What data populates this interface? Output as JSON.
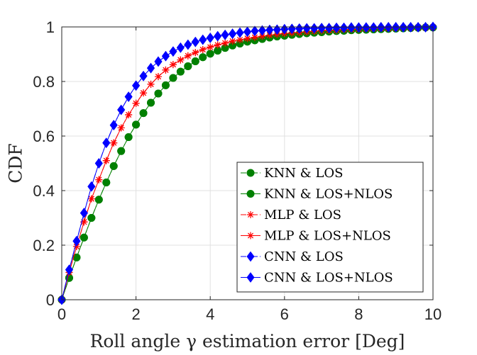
{
  "chart_data": {
    "type": "line",
    "xlabel": "Roll angle γ estimation error [Deg]",
    "ylabel": "CDF",
    "xlim": [
      0,
      10
    ],
    "ylim": [
      0,
      1
    ],
    "xticks": [
      0,
      2,
      4,
      6,
      8,
      10
    ],
    "yticks": [
      0,
      0.2,
      0.4,
      0.6,
      0.8,
      1
    ],
    "xtick_labels": [
      "0",
      "2",
      "4",
      "6",
      "8",
      "10"
    ],
    "ytick_labels": [
      "0",
      "0.2",
      "0.4",
      "0.6",
      "0.8",
      "1"
    ],
    "grid": true,
    "legend_position": "bottom-right",
    "x": [
      0,
      0.2,
      0.4,
      0.6,
      0.8,
      1.0,
      1.2,
      1.4,
      1.6,
      1.8,
      2.0,
      2.2,
      2.4,
      2.6,
      2.8,
      3.0,
      3.2,
      3.4,
      3.6,
      3.8,
      4.0,
      4.2,
      4.4,
      4.6,
      4.8,
      5.0,
      5.2,
      5.4,
      5.6,
      5.8,
      6.0,
      6.2,
      6.4,
      6.6,
      6.8,
      7.0,
      7.2,
      7.4,
      7.6,
      7.8,
      8.0,
      8.2,
      8.4,
      8.6,
      8.8,
      9.0,
      9.2,
      9.4,
      9.6,
      9.8,
      10.0
    ],
    "series": [
      {
        "name": "KNN & LOS",
        "color": "#008000",
        "marker": "circle",
        "dash": "dash-dot",
        "values": [
          0,
          0.08,
          0.155,
          0.228,
          0.3,
          0.367,
          0.43,
          0.49,
          0.545,
          0.596,
          0.642,
          0.684,
          0.722,
          0.756,
          0.786,
          0.813,
          0.836,
          0.856,
          0.874,
          0.889,
          0.902,
          0.913,
          0.923,
          0.932,
          0.939,
          0.946,
          0.951,
          0.956,
          0.961,
          0.965,
          0.968,
          0.971,
          0.974,
          0.977,
          0.979,
          0.981,
          0.983,
          0.985,
          0.986,
          0.988,
          0.989,
          0.99,
          0.991,
          0.992,
          0.993,
          0.994,
          0.995,
          0.996,
          0.997,
          0.998,
          0.998
        ]
      },
      {
        "name": "KNN & LOS+NLOS",
        "color": "#008000",
        "marker": "circle",
        "dash": "solid",
        "values": [
          0,
          0.08,
          0.155,
          0.228,
          0.3,
          0.367,
          0.43,
          0.49,
          0.545,
          0.596,
          0.642,
          0.684,
          0.722,
          0.756,
          0.786,
          0.813,
          0.836,
          0.856,
          0.874,
          0.889,
          0.902,
          0.913,
          0.923,
          0.932,
          0.939,
          0.946,
          0.951,
          0.956,
          0.961,
          0.965,
          0.968,
          0.971,
          0.974,
          0.977,
          0.979,
          0.981,
          0.983,
          0.985,
          0.986,
          0.988,
          0.989,
          0.99,
          0.991,
          0.992,
          0.993,
          0.994,
          0.995,
          0.996,
          0.997,
          0.998,
          0.998
        ]
      },
      {
        "name": "MLP & LOS",
        "color": "#ff0000",
        "marker": "star",
        "dash": "dash-dot",
        "values": [
          0,
          0.1,
          0.195,
          0.285,
          0.37,
          0.44,
          0.51,
          0.575,
          0.63,
          0.678,
          0.72,
          0.758,
          0.79,
          0.818,
          0.842,
          0.862,
          0.879,
          0.894,
          0.906,
          0.917,
          0.926,
          0.934,
          0.941,
          0.948,
          0.953,
          0.958,
          0.962,
          0.966,
          0.97,
          0.973,
          0.976,
          0.978,
          0.98,
          0.982,
          0.984,
          0.986,
          0.987,
          0.988,
          0.99,
          0.991,
          0.992,
          0.993,
          0.994,
          0.995,
          0.995,
          0.996,
          0.997,
          0.997,
          0.998,
          0.998,
          0.999
        ]
      },
      {
        "name": "MLP & LOS+NLOS",
        "color": "#ff0000",
        "marker": "star",
        "dash": "solid",
        "values": [
          0,
          0.1,
          0.195,
          0.285,
          0.37,
          0.44,
          0.51,
          0.575,
          0.63,
          0.678,
          0.72,
          0.758,
          0.79,
          0.818,
          0.842,
          0.862,
          0.879,
          0.894,
          0.906,
          0.917,
          0.926,
          0.934,
          0.941,
          0.948,
          0.953,
          0.958,
          0.962,
          0.966,
          0.97,
          0.973,
          0.976,
          0.978,
          0.98,
          0.982,
          0.984,
          0.986,
          0.987,
          0.988,
          0.99,
          0.991,
          0.992,
          0.993,
          0.994,
          0.995,
          0.995,
          0.996,
          0.997,
          0.997,
          0.998,
          0.998,
          0.999
        ]
      },
      {
        "name": "CNN & LOS",
        "color": "#0000ff",
        "marker": "diamond",
        "dash": "dash-dot",
        "values": [
          0,
          0.11,
          0.215,
          0.318,
          0.415,
          0.5,
          0.575,
          0.64,
          0.696,
          0.744,
          0.785,
          0.82,
          0.849,
          0.873,
          0.893,
          0.91,
          0.924,
          0.935,
          0.945,
          0.953,
          0.96,
          0.966,
          0.971,
          0.975,
          0.979,
          0.982,
          0.985,
          0.987,
          0.989,
          0.99,
          0.992,
          0.993,
          0.994,
          0.995,
          0.995,
          0.996,
          0.996,
          0.997,
          0.997,
          0.998,
          0.998,
          0.998,
          0.998,
          0.999,
          0.999,
          0.999,
          0.999,
          0.999,
          0.999,
          0.999,
          1.0
        ]
      },
      {
        "name": "CNN & LOS+NLOS",
        "color": "#0000ff",
        "marker": "diamond",
        "dash": "solid",
        "values": [
          0,
          0.11,
          0.215,
          0.318,
          0.415,
          0.5,
          0.575,
          0.64,
          0.696,
          0.744,
          0.785,
          0.82,
          0.849,
          0.873,
          0.893,
          0.91,
          0.924,
          0.935,
          0.945,
          0.953,
          0.96,
          0.966,
          0.971,
          0.975,
          0.979,
          0.982,
          0.985,
          0.987,
          0.989,
          0.99,
          0.992,
          0.993,
          0.994,
          0.995,
          0.995,
          0.996,
          0.996,
          0.997,
          0.997,
          0.998,
          0.998,
          0.998,
          0.998,
          0.999,
          0.999,
          0.999,
          0.999,
          0.999,
          0.999,
          0.999,
          1.0
        ]
      }
    ]
  }
}
